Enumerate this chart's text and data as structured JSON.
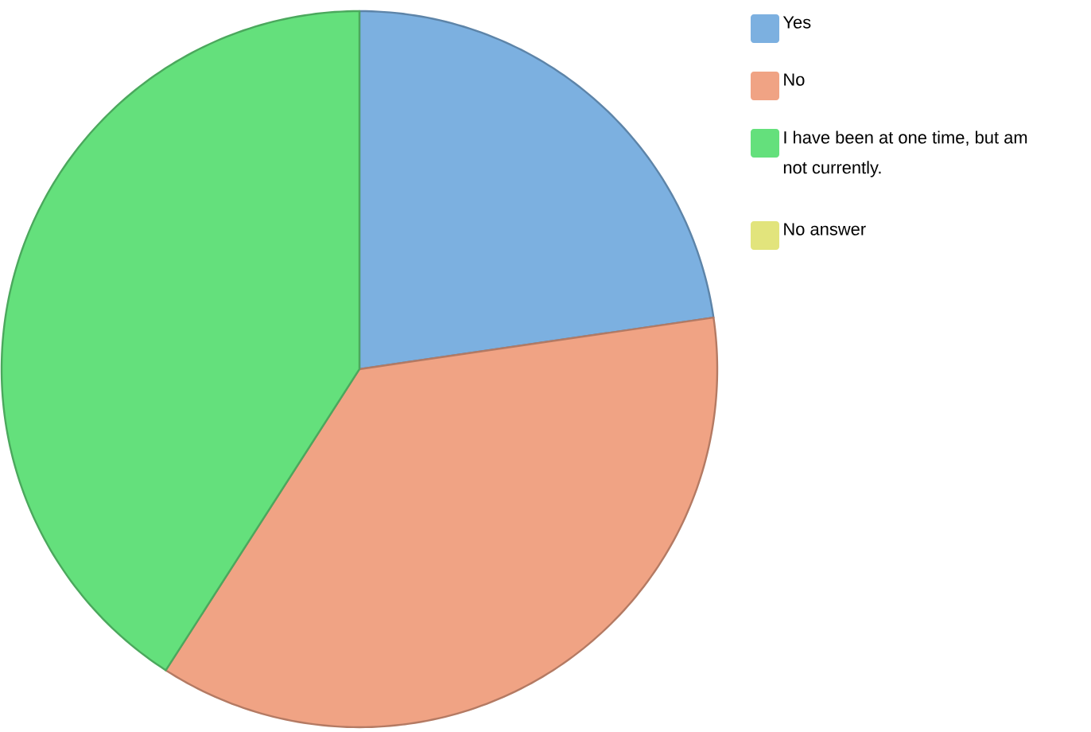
{
  "chart_data": {
    "type": "pie",
    "categories": [
      "Yes",
      "No",
      "I have been at one time, but am not currently.",
      "No answer"
    ],
    "values": [
      22.7,
      36.4,
      40.9,
      0
    ],
    "colors": [
      "#7cb0e0",
      "#f0a384",
      "#64e07c",
      "#e2e47c"
    ],
    "legend": "top right"
  }
}
